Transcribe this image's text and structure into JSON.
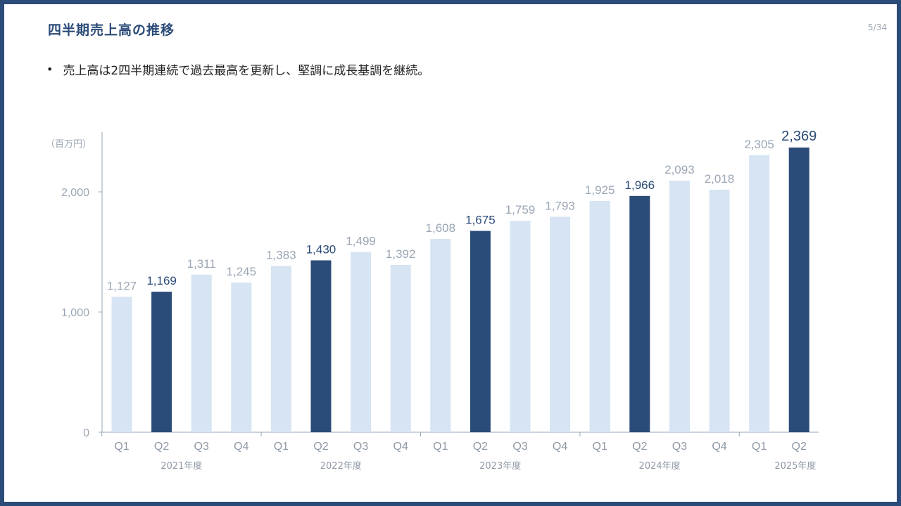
{
  "slide": {
    "title": "四半期売上高の推移",
    "page_number": "5/34",
    "bullet": "売上高は2四半期連続で過去最高を更新し、堅調に成長基調を継続。"
  },
  "colors": {
    "frame": "#2b4b78",
    "highlight_bar": "#2b4b78",
    "normal_bar": "#d6e4f3",
    "axis": "#9aa6b4",
    "muted_text": "#9aa6b4"
  },
  "chart_data": {
    "type": "bar",
    "unit_label": "（百万円）",
    "ylim": [
      0,
      2500
    ],
    "y_ticks": [
      {
        "value": 0,
        "label": "0"
      },
      {
        "value": 1000,
        "label": "1,000"
      },
      {
        "value": 2000,
        "label": "2,000"
      }
    ],
    "grid": false,
    "categories": [
      "Q1",
      "Q2",
      "Q3",
      "Q4",
      "Q1",
      "Q2",
      "Q3",
      "Q4",
      "Q1",
      "Q2",
      "Q3",
      "Q4",
      "Q1",
      "Q2",
      "Q3",
      "Q4",
      "Q1",
      "Q2"
    ],
    "values": [
      1127,
      1169,
      1311,
      1245,
      1383,
      1430,
      1499,
      1392,
      1608,
      1675,
      1759,
      1793,
      1925,
      1966,
      2093,
      2018,
      2305,
      2369
    ],
    "value_labels": [
      "1,127",
      "1,169",
      "1,311",
      "1,245",
      "1,383",
      "1,430",
      "1,499",
      "1,392",
      "1,608",
      "1,675",
      "1,759",
      "1,793",
      "1,925",
      "1,966",
      "2,093",
      "2,018",
      "2,305",
      "2,369"
    ],
    "highlighted": [
      false,
      true,
      false,
      false,
      false,
      true,
      false,
      false,
      false,
      true,
      false,
      false,
      false,
      true,
      false,
      false,
      false,
      true
    ],
    "groups": [
      {
        "label": "2021年度",
        "count": 4
      },
      {
        "label": "2022年度",
        "count": 4
      },
      {
        "label": "2023年度",
        "count": 4
      },
      {
        "label": "2024年度",
        "count": 4
      },
      {
        "label": "2025年度",
        "count": 2
      }
    ]
  }
}
